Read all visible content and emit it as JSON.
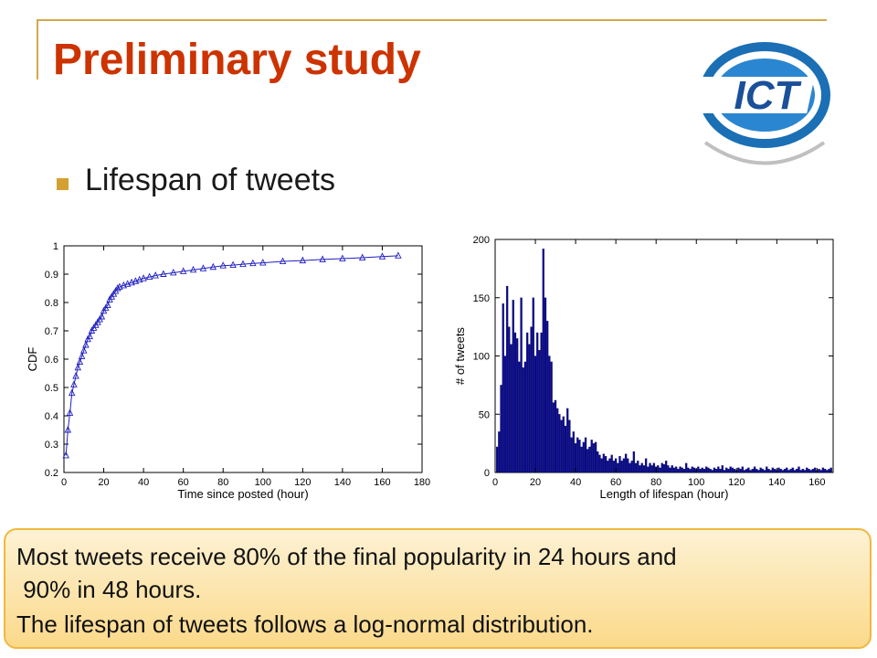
{
  "slide": {
    "title": "Preliminary study",
    "bullet": "Lifespan of tweets",
    "logo_text": "ICT"
  },
  "callout": {
    "line1": "Most tweets receive 80% of the final popularity in 24 hours and",
    "line2": " 90% in 48 hours.",
    "line3": "The lifespan of tweets follows a log-normal distribution."
  },
  "colors": {
    "title": "#cc3300",
    "accent": "#d4a030",
    "series_line": "#2020c0",
    "bars": "#0a0a8c",
    "callout_bg": "#fbd98a"
  },
  "chart_data": [
    {
      "type": "line",
      "title": "",
      "xlabel": "Time since posted (hour)",
      "ylabel": "CDF",
      "xlim": [
        0,
        180
      ],
      "ylim": [
        0.2,
        1
      ],
      "xticks": [
        0,
        20,
        40,
        60,
        80,
        100,
        120,
        140,
        160,
        180
      ],
      "yticks": [
        0.2,
        0.3,
        0.4,
        0.5,
        0.6,
        0.7,
        0.8,
        0.9,
        1
      ],
      "marker": "triangle",
      "grid": false,
      "series": [
        {
          "x": [
            1,
            2,
            3,
            4,
            5,
            6,
            7,
            8,
            9,
            10,
            11,
            12,
            13,
            14,
            15,
            16,
            17,
            18,
            19,
            20,
            21,
            22,
            23,
            24,
            25,
            26,
            27,
            28,
            30,
            32,
            34,
            36,
            38,
            40,
            43,
            46,
            50,
            55,
            60,
            65,
            70,
            75,
            80,
            85,
            90,
            95,
            100,
            110,
            120,
            130,
            140,
            150,
            160,
            168
          ],
          "y": [
            0.26,
            0.35,
            0.41,
            0.48,
            0.51,
            0.54,
            0.57,
            0.59,
            0.61,
            0.63,
            0.65,
            0.67,
            0.68,
            0.7,
            0.71,
            0.72,
            0.73,
            0.74,
            0.75,
            0.77,
            0.78,
            0.79,
            0.81,
            0.82,
            0.83,
            0.84,
            0.85,
            0.855,
            0.86,
            0.865,
            0.87,
            0.875,
            0.88,
            0.885,
            0.89,
            0.895,
            0.9,
            0.905,
            0.91,
            0.915,
            0.92,
            0.925,
            0.93,
            0.932,
            0.935,
            0.938,
            0.94,
            0.945,
            0.948,
            0.952,
            0.955,
            0.958,
            0.962,
            0.965
          ]
        }
      ]
    },
    {
      "type": "bar",
      "title": "",
      "xlabel": "Length of lifespan (hour)",
      "ylabel": "# of tweets",
      "xlim": [
        0,
        168
      ],
      "ylim": [
        0,
        200
      ],
      "xticks": [
        0,
        20,
        40,
        60,
        80,
        100,
        120,
        140,
        160
      ],
      "yticks": [
        0,
        50,
        100,
        150,
        200
      ],
      "grid": false,
      "x": [
        1,
        2,
        3,
        4,
        5,
        6,
        7,
        8,
        9,
        10,
        11,
        12,
        13,
        14,
        15,
        16,
        17,
        18,
        19,
        20,
        21,
        22,
        23,
        24,
        25,
        26,
        27,
        28,
        29,
        30,
        31,
        32,
        33,
        34,
        35,
        36,
        37,
        38,
        39,
        40,
        41,
        42,
        43,
        44,
        45,
        46,
        47,
        48,
        49,
        50,
        51,
        52,
        53,
        54,
        55,
        56,
        57,
        58,
        59,
        60,
        61,
        62,
        63,
        64,
        65,
        66,
        67,
        68,
        69,
        70,
        71,
        72,
        73,
        74,
        75,
        76,
        77,
        78,
        79,
        80,
        81,
        82,
        83,
        84,
        85,
        86,
        87,
        88,
        89,
        90,
        91,
        92,
        93,
        94,
        95,
        96,
        97,
        98,
        99,
        100,
        101,
        102,
        103,
        104,
        105,
        106,
        107,
        108,
        109,
        110,
        111,
        112,
        113,
        114,
        115,
        116,
        117,
        118,
        119,
        120,
        121,
        122,
        123,
        124,
        125,
        126,
        127,
        128,
        129,
        130,
        131,
        132,
        133,
        134,
        135,
        136,
        137,
        138,
        139,
        140,
        141,
        142,
        143,
        144,
        145,
        146,
        147,
        148,
        149,
        150,
        151,
        152,
        153,
        154,
        155,
        156,
        157,
        158,
        159,
        160,
        161,
        162,
        163,
        164,
        165,
        166,
        167
      ],
      "values": [
        22,
        35,
        75,
        145,
        100,
        160,
        125,
        110,
        148,
        120,
        115,
        95,
        150,
        90,
        95,
        120,
        110,
        125,
        150,
        100,
        120,
        105,
        120,
        192,
        150,
        130,
        100,
        95,
        60,
        62,
        55,
        50,
        45,
        48,
        40,
        55,
        45,
        30,
        35,
        25,
        30,
        28,
        22,
        26,
        30,
        20,
        22,
        28,
        25,
        26,
        18,
        15,
        12,
        16,
        14,
        10,
        12,
        15,
        10,
        12,
        8,
        14,
        10,
        12,
        16,
        12,
        8,
        10,
        18,
        8,
        10,
        6,
        8,
        6,
        12,
        5,
        8,
        6,
        8,
        5,
        6,
        4,
        8,
        7,
        10,
        6,
        4,
        6,
        4,
        5,
        3,
        5,
        4,
        3,
        8,
        4,
        3,
        5,
        4,
        3,
        5,
        3,
        4,
        3,
        5,
        4,
        3,
        2,
        4,
        3,
        5,
        3,
        6,
        2,
        4,
        3,
        5,
        4,
        3,
        2,
        4,
        3,
        5,
        2,
        3,
        4,
        2,
        3,
        5,
        3,
        2,
        4,
        3,
        2,
        5,
        3,
        2,
        4,
        3,
        2,
        4,
        3,
        2,
        3,
        4,
        2,
        3,
        4,
        2,
        3,
        5,
        2,
        3,
        2,
        4,
        3,
        2,
        3,
        4,
        2,
        3,
        2,
        4,
        3,
        2,
        3,
        4
      ]
    }
  ]
}
